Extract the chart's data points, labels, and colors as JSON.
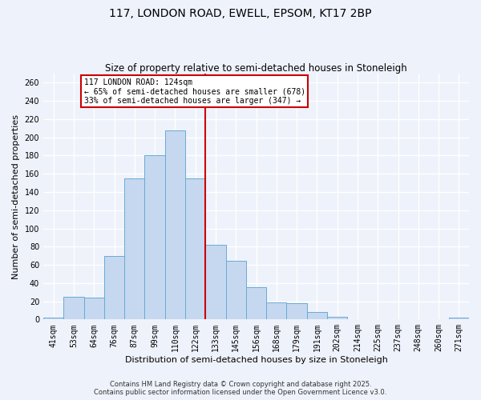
{
  "title": "117, LONDON ROAD, EWELL, EPSOM, KT17 2BP",
  "subtitle": "Size of property relative to semi-detached houses in Stoneleigh",
  "xlabel": "Distribution of semi-detached houses by size in Stoneleigh",
  "ylabel": "Number of semi-detached properties",
  "categories": [
    "41sqm",
    "53sqm",
    "64sqm",
    "76sqm",
    "87sqm",
    "99sqm",
    "110sqm",
    "122sqm",
    "133sqm",
    "145sqm",
    "156sqm",
    "168sqm",
    "179sqm",
    "191sqm",
    "202sqm",
    "214sqm",
    "225sqm",
    "237sqm",
    "248sqm",
    "260sqm",
    "271sqm"
  ],
  "values": [
    2,
    25,
    24,
    70,
    155,
    180,
    208,
    155,
    82,
    64,
    35,
    19,
    18,
    8,
    3,
    0,
    0,
    0,
    0,
    0,
    2
  ],
  "bar_color": "#c5d8f0",
  "bar_edge_color": "#6aaad4",
  "vline_x": 7.5,
  "vline_color": "#cc0000",
  "annotation_title": "117 LONDON ROAD: 124sqm",
  "annotation_line1": "← 65% of semi-detached houses are smaller (678)",
  "annotation_line2": "33% of semi-detached houses are larger (347) →",
  "annotation_box_color": "#cc0000",
  "ylim": [
    0,
    270
  ],
  "yticks": [
    0,
    20,
    40,
    60,
    80,
    100,
    120,
    140,
    160,
    180,
    200,
    220,
    240,
    260
  ],
  "footer1": "Contains HM Land Registry data © Crown copyright and database right 2025.",
  "footer2": "Contains public sector information licensed under the Open Government Licence v3.0.",
  "bg_color": "#eef2fb",
  "grid_color": "#ffffff",
  "title_fontsize": 10,
  "subtitle_fontsize": 8.5,
  "tick_fontsize": 7,
  "label_fontsize": 8,
  "footer_fontsize": 6
}
